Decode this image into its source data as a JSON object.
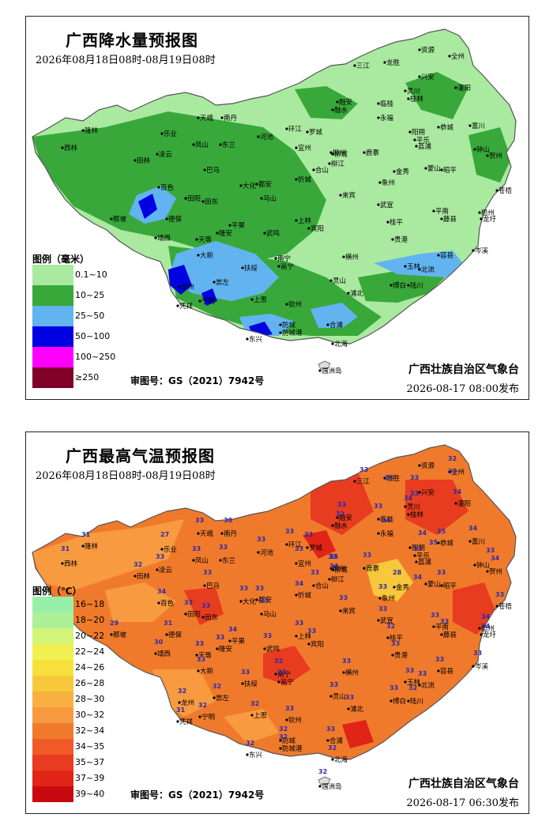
{
  "rain": {
    "title": "广西降水量预报图",
    "period": "2026年08月18日08时-08月19日08时",
    "legend_title": "图例（毫米）",
    "legend": [
      {
        "label": "0.1~10",
        "color": "#aaeaa0"
      },
      {
        "label": "10~25",
        "color": "#38a83a"
      },
      {
        "label": "25~50",
        "color": "#62b4f0"
      },
      {
        "label": "50~100",
        "color": "#0000e0"
      },
      {
        "label": "100~250",
        "color": "#ff00ff"
      },
      {
        "label": "≥250",
        "color": "#80002a"
      }
    ],
    "approval": "审图号：GS（2021）7942号",
    "issuer": "广西壮族自治区气象台",
    "issued": "2026-08-17  08:00发布"
  },
  "temp": {
    "title": "广西最高气温预报图",
    "period": "2026年08月18日08时-08月19日08时",
    "legend_title": "图例（℃）",
    "legend": [
      {
        "label": "16~18",
        "color": "#96f0aa"
      },
      {
        "label": "18~20",
        "color": "#aef098"
      },
      {
        "label": "20~22",
        "color": "#d2f478"
      },
      {
        "label": "22~24",
        "color": "#f0f050"
      },
      {
        "label": "24~26",
        "color": "#f8e03c"
      },
      {
        "label": "26~28",
        "color": "#f8c83c"
      },
      {
        "label": "28~30",
        "color": "#f8b040"
      },
      {
        "label": "30~32",
        "color": "#f89a40"
      },
      {
        "label": "32~34",
        "color": "#f07a2c"
      },
      {
        "label": "34~35",
        "color": "#f05a28"
      },
      {
        "label": "35~37",
        "color": "#e83c20"
      },
      {
        "label": "37~39",
        "color": "#e02418"
      },
      {
        "label": "39~40",
        "color": "#c80a10"
      }
    ],
    "approval": "审图号：GS（2021）7942号",
    "issuer": "广西壮族自治区气象台",
    "issued": "2026-08-17  06:30发布"
  },
  "cities": [
    {
      "name": "资源"
    },
    {
      "name": "全州"
    },
    {
      "name": "三江"
    },
    {
      "name": "龙胜"
    },
    {
      "name": "兴安"
    },
    {
      "name": "灵川"
    },
    {
      "name": "桂林"
    },
    {
      "name": "灌阳"
    },
    {
      "name": "融安"
    },
    {
      "name": "融水"
    },
    {
      "name": "临桂"
    },
    {
      "name": "永福"
    },
    {
      "name": "恭城"
    },
    {
      "name": "阳朔"
    },
    {
      "name": "平乐"
    },
    {
      "name": "富川"
    },
    {
      "name": "钟山"
    },
    {
      "name": "贺州"
    },
    {
      "name": "荔浦"
    },
    {
      "name": "昭平"
    },
    {
      "name": "蒙山"
    },
    {
      "name": "金秀"
    },
    {
      "name": "苍梧"
    },
    {
      "name": "梧州"
    },
    {
      "name": "龙圩"
    },
    {
      "name": "藤县"
    },
    {
      "name": "岑溪"
    },
    {
      "name": "平南"
    },
    {
      "name": "桂平"
    },
    {
      "name": "容县"
    },
    {
      "name": "北流"
    },
    {
      "name": "玉林"
    },
    {
      "name": "陆川"
    },
    {
      "name": "博白"
    },
    {
      "name": "贵港"
    },
    {
      "name": "象州"
    },
    {
      "name": "武宣"
    },
    {
      "name": "来宾"
    },
    {
      "name": "鹿寨"
    },
    {
      "name": "柳州"
    },
    {
      "name": "柳江"
    },
    {
      "name": "柳城"
    },
    {
      "name": "罗城"
    },
    {
      "name": "宜州"
    },
    {
      "name": "环江"
    },
    {
      "name": "河池"
    },
    {
      "name": "南丹"
    },
    {
      "name": "天峨"
    },
    {
      "name": "东兰"
    },
    {
      "name": "凤山"
    },
    {
      "name": "乐业"
    },
    {
      "name": "凌云"
    },
    {
      "name": "田林"
    },
    {
      "name": "西林"
    },
    {
      "name": "隆林"
    },
    {
      "name": "巴马"
    },
    {
      "name": "都安"
    },
    {
      "name": "大化"
    },
    {
      "name": "马山"
    },
    {
      "name": "忻城"
    },
    {
      "name": "合山"
    },
    {
      "name": "上林"
    },
    {
      "name": "宾阳"
    },
    {
      "name": "武鸣"
    },
    {
      "name": "横州"
    },
    {
      "name": "南宁"
    },
    {
      "name": "邕宁"
    },
    {
      "name": "隆安"
    },
    {
      "name": "平果"
    },
    {
      "name": "田东"
    },
    {
      "name": "田阳"
    },
    {
      "name": "百色"
    },
    {
      "name": "德保"
    },
    {
      "name": "那坡"
    },
    {
      "name": "靖西"
    },
    {
      "name": "天等"
    },
    {
      "name": "大新"
    },
    {
      "name": "崇左"
    },
    {
      "name": "扶绥"
    },
    {
      "name": "龙州"
    },
    {
      "name": "宁明"
    },
    {
      "name": "凭祥"
    },
    {
      "name": "上思"
    },
    {
      "name": "灵山"
    },
    {
      "name": "浦北"
    },
    {
      "name": "钦州"
    },
    {
      "name": "防城"
    },
    {
      "name": "防城港"
    },
    {
      "name": "东兴"
    },
    {
      "name": "合浦"
    },
    {
      "name": "北海"
    },
    {
      "name": "涠洲岛"
    }
  ],
  "temp_values": [
    {
      "v": "32"
    },
    {
      "v": "33"
    },
    {
      "v": "33"
    },
    {
      "v": "33"
    },
    {
      "v": "33"
    },
    {
      "v": "33"
    },
    {
      "v": "34"
    },
    {
      "v": "34"
    },
    {
      "v": "33"
    },
    {
      "v": "33"
    },
    {
      "v": "33"
    },
    {
      "v": "34"
    },
    {
      "v": "35"
    },
    {
      "v": "34"
    },
    {
      "v": "35"
    },
    {
      "v": "34"
    },
    {
      "v": "33"
    },
    {
      "v": "34"
    },
    {
      "v": "33"
    },
    {
      "v": "33"
    },
    {
      "v": "34"
    },
    {
      "v": "28"
    },
    {
      "v": "33"
    },
    {
      "v": "34"
    },
    {
      "v": "34"
    },
    {
      "v": "33"
    },
    {
      "v": "33"
    },
    {
      "v": "33"
    },
    {
      "v": "32"
    },
    {
      "v": "33"
    },
    {
      "v": "33"
    },
    {
      "v": "33"
    },
    {
      "v": "32"
    },
    {
      "v": "33"
    },
    {
      "v": "33"
    },
    {
      "v": "33"
    },
    {
      "v": "33"
    },
    {
      "v": "33"
    },
    {
      "v": "33"
    },
    {
      "v": "33"
    },
    {
      "v": "34"
    },
    {
      "v": "33"
    },
    {
      "v": "33"
    },
    {
      "v": "33"
    },
    {
      "v": "33"
    },
    {
      "v": "33"
    },
    {
      "v": "30"
    },
    {
      "v": "33"
    },
    {
      "v": "33"
    },
    {
      "v": "33"
    },
    {
      "v": "27"
    },
    {
      "v": "33"
    },
    {
      "v": "32"
    },
    {
      "v": "31"
    },
    {
      "v": "31"
    },
    {
      "v": "33"
    },
    {
      "v": "33"
    },
    {
      "v": "33"
    },
    {
      "v": "33"
    },
    {
      "v": "34"
    },
    {
      "v": "33"
    },
    {
      "v": "33"
    },
    {
      "v": "33"
    },
    {
      "v": "33"
    },
    {
      "v": "33"
    },
    {
      "v": "32"
    },
    {
      "v": "33"
    },
    {
      "v": "33"
    },
    {
      "v": "34"
    },
    {
      "v": "33"
    },
    {
      "v": "33"
    },
    {
      "v": "34"
    },
    {
      "v": "31"
    },
    {
      "v": "29"
    },
    {
      "v": "30"
    },
    {
      "v": "33"
    },
    {
      "v": "33"
    },
    {
      "v": "32"
    },
    {
      "v": "33"
    },
    {
      "v": "32"
    },
    {
      "v": "32"
    },
    {
      "v": "31"
    },
    {
      "v": "32"
    },
    {
      "v": "33"
    },
    {
      "v": "33"
    },
    {
      "v": "33"
    },
    {
      "v": "32"
    },
    {
      "v": "32"
    },
    {
      "v": "32"
    },
    {
      "v": "33"
    },
    {
      "v": "32"
    },
    {
      "v": "32"
    }
  ]
}
